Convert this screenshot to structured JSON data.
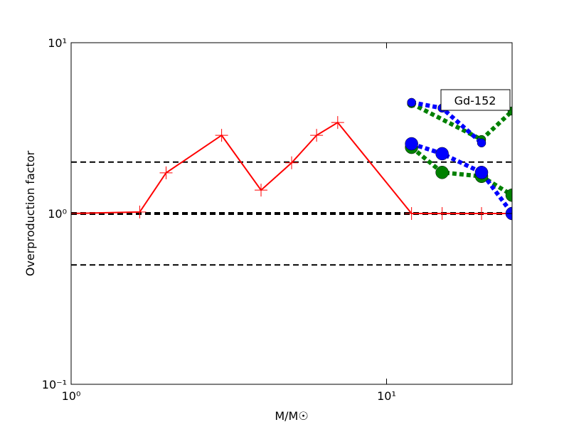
{
  "chart_data": {
    "type": "line",
    "xlabel": "M/M☉",
    "ylabel": "Overproduction factor",
    "annotation": "Gd-152",
    "xscale": "log",
    "yscale": "log",
    "xlim": [
      1,
      25
    ],
    "ylim": [
      0.1,
      10
    ],
    "xticks": [
      {
        "value": 1,
        "label": "10⁰"
      },
      {
        "value": 10,
        "label": "10¹"
      }
    ],
    "yticks": [
      {
        "value": 0.1,
        "label": "10⁻¹"
      },
      {
        "value": 1,
        "label": "10⁰"
      },
      {
        "value": 10,
        "label": "10¹"
      }
    ],
    "hlines": [
      {
        "y": 2,
        "color": "#000000",
        "linestyle": "dashed"
      },
      {
        "y": 1,
        "color": "#000000",
        "linestyle": "dashed-thick"
      },
      {
        "y": 0.5,
        "color": "#000000",
        "linestyle": "dashed"
      }
    ],
    "series": [
      {
        "color": "#ff0000",
        "linestyle": "solid",
        "marker": "plus",
        "x": [
          1,
          1.65,
          2,
          3,
          4,
          5,
          6,
          7,
          12,
          15,
          20,
          25
        ],
        "values": [
          1,
          1.02,
          1.73,
          2.87,
          1.37,
          1.98,
          2.87,
          3.41,
          1,
          1,
          1,
          1
        ]
      },
      {
        "color": "#008000",
        "linestyle": "dotted",
        "marker": "circle-small",
        "x": [
          12,
          20,
          25
        ],
        "values": [
          4.4,
          2.71,
          3.98
        ]
      },
      {
        "color": "#0000ff",
        "linestyle": "dotted",
        "marker": "circle-small",
        "x": [
          12,
          15,
          20
        ],
        "values": [
          4.47,
          4.14,
          2.59
        ]
      },
      {
        "color": "#008000",
        "linestyle": "dotted",
        "marker": "circle-large",
        "x": [
          12,
          15,
          20,
          25
        ],
        "values": [
          2.44,
          1.74,
          1.65,
          1.28
        ]
      },
      {
        "color": "#0000ff",
        "linestyle": "dotted",
        "marker": "circle-large",
        "x": [
          12,
          15,
          20,
          25
        ],
        "values": [
          2.56,
          2.24,
          1.74,
          1.0
        ]
      }
    ]
  }
}
